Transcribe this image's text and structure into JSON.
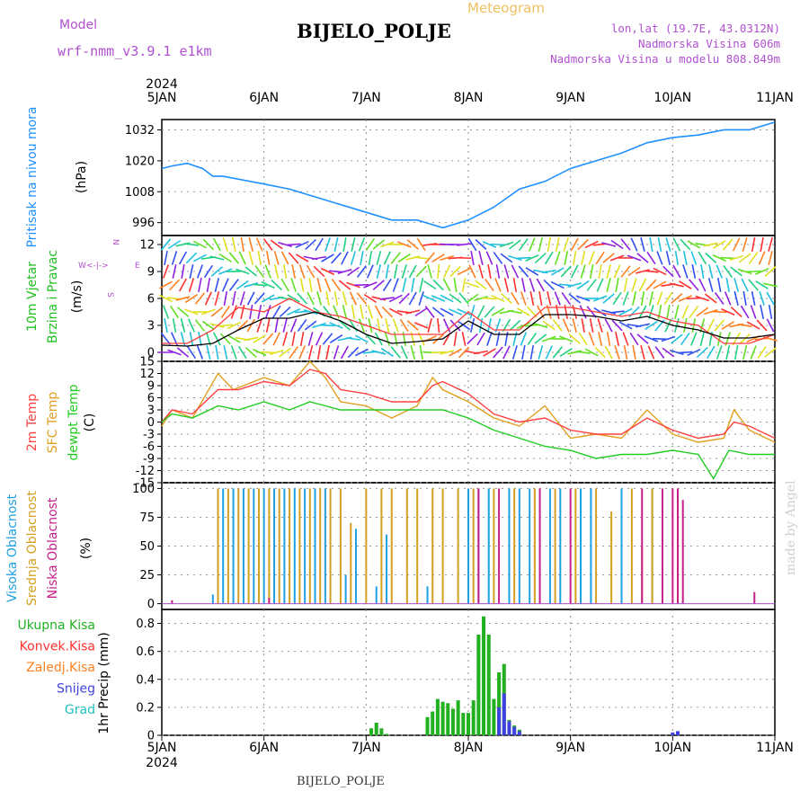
{
  "header": {
    "model_label": "Model",
    "model_name": "wrf-nmm_v3.9.1 e1km",
    "product": "Meteogram",
    "station": "BIJELO_POLJE",
    "coords": "lon,lat (19.7E, 43.0312N)",
    "elevation": "Nadmorska Visina 606m",
    "model_elevation": "Nadmorska Visina u modelu 808.849m",
    "footer_station": "BIJELO_POLJE",
    "credit": "made by Angel"
  },
  "colors": {
    "pressure": "#1e90ff",
    "wind_speed": "#000000",
    "wind_gust": "#ff3a3a",
    "t2m": "#ff4040",
    "tsfc": "#e0a020",
    "dewpt": "#20cc20",
    "high_cloud": "#20a0e0",
    "mid_cloud": "#d4a020",
    "low_cloud": "#c81e8c",
    "total_precip": "#20b020",
    "conv_precip": "#ff3030",
    "frozen_precip": "#ff8020",
    "snow": "#4040e0",
    "graupel": "#20c0c0"
  },
  "chart_data": {
    "type": "line",
    "x_axis": {
      "year": "2024",
      "ticks": [
        "5JAN",
        "6JAN",
        "7JAN",
        "8JAN",
        "9JAN",
        "10JAN",
        "11JAN"
      ]
    },
    "panels": [
      {
        "id": "pressure",
        "ylabel": [
          "Pritisak na nivou mora",
          "(hPa)"
        ],
        "yticks": [
          996,
          1008,
          1020,
          1032
        ],
        "ylim": [
          991,
          1036
        ],
        "series": [
          {
            "name": "Pritisak na nivou mora",
            "x": [
              0,
              0.1,
              0.25,
              0.4,
              0.5,
              0.6,
              1.0,
              1.25,
              1.5,
              1.75,
              2.0,
              2.25,
              2.5,
              2.75,
              3.0,
              3.25,
              3.5,
              3.75,
              4.0,
              4.25,
              4.5,
              4.75,
              5.0,
              5.25,
              5.5,
              5.75,
              6.0
            ],
            "y": [
              1017,
              1018,
              1019,
              1017,
              1014,
              1014,
              1011,
              1009,
              1006,
              1003,
              1000,
              997,
              997,
              994,
              997,
              1002,
              1009,
              1012,
              1017,
              1020,
              1023,
              1027,
              1029,
              1030,
              1032,
              1032,
              1035
            ]
          }
        ]
      },
      {
        "id": "wind",
        "ylabel": [
          "10m Vjetar",
          "Brzina i Pravac",
          "(m/s)"
        ],
        "yticks": [
          0,
          3,
          6,
          9,
          12
        ],
        "ylim": [
          -1,
          13
        ],
        "direction_legend": {
          "n": "N",
          "e": "E",
          "w": "W",
          "s": "S"
        },
        "series": [
          {
            "name": "speed",
            "x": [
              0,
              0.25,
              0.5,
              0.75,
              1.0,
              1.25,
              1.5,
              1.75,
              2.0,
              2.25,
              2.5,
              2.75,
              3.0,
              3.25,
              3.5,
              3.75,
              4.0,
              4.25,
              4.5,
              4.75,
              5.0,
              5.25,
              5.5,
              5.75,
              6.0
            ],
            "y": [
              0.8,
              0.7,
              1.0,
              2.5,
              3.8,
              3.8,
              4.5,
              3.5,
              2.0,
              1.0,
              1.2,
              1.5,
              3.5,
              2.0,
              2.0,
              4.2,
              4.2,
              4.0,
              3.5,
              4.0,
              3.0,
              2.5,
              1.6,
              1.6,
              2.0
            ]
          },
          {
            "name": "gust",
            "x": [
              0,
              0.25,
              0.5,
              0.75,
              1.0,
              1.25,
              1.5,
              1.75,
              2.0,
              2.25,
              2.5,
              2.75,
              3.0,
              3.25,
              3.5,
              3.75,
              4.0,
              4.25,
              4.5,
              4.75,
              5.0,
              5.25,
              5.5,
              5.75,
              6.0
            ],
            "y": [
              1.0,
              1.0,
              2.5,
              5.0,
              4.5,
              6.0,
              4.5,
              4.0,
              3.0,
              2.0,
              2.0,
              2.0,
              4.5,
              2.5,
              2.5,
              5.0,
              5.0,
              4.5,
              4.0,
              4.5,
              3.5,
              3.0,
              1.0,
              1.0,
              2.0
            ]
          }
        ]
      },
      {
        "id": "temperature",
        "ylabel": [
          "2m Temp",
          "SFC Temp",
          "dewpt Temp",
          "(C)"
        ],
        "yticks": [
          -15,
          -12,
          -9,
          -6,
          -3,
          0,
          3,
          6,
          9,
          12,
          15
        ],
        "ylim": [
          -15,
          15
        ],
        "series": [
          {
            "name": "2m Temp",
            "x": [
              0,
              0.1,
              0.3,
              0.55,
              0.75,
              1.0,
              1.25,
              1.45,
              1.6,
              1.75,
              2.0,
              2.25,
              2.5,
              2.65,
              2.75,
              3.0,
              3.25,
              3.5,
              3.75,
              4.0,
              4.25,
              4.5,
              4.75,
              5.0,
              5.25,
              5.5,
              5.6,
              5.75,
              6.0
            ],
            "y": [
              0,
              3,
              2,
              8,
              8,
              10,
              9,
              13,
              12,
              8,
              7,
              5,
              5,
              9,
              10,
              7,
              2,
              0,
              1,
              -2,
              -3,
              -3,
              1,
              -2,
              -4,
              -3,
              0,
              -1,
              -4
            ]
          },
          {
            "name": "SFC Temp",
            "x": [
              0,
              0.1,
              0.3,
              0.55,
              0.7,
              1.0,
              1.25,
              1.45,
              1.6,
              1.75,
              2.0,
              2.25,
              2.5,
              2.65,
              2.75,
              3.0,
              3.25,
              3.5,
              3.75,
              4.0,
              4.25,
              4.5,
              4.75,
              5.0,
              5.25,
              5.5,
              5.6,
              5.75,
              6.0
            ],
            "y": [
              -1,
              3,
              1,
              12,
              8,
              11,
              9,
              15,
              11,
              5,
              4,
              1,
              4,
              11,
              8,
              5,
              1,
              -1,
              4,
              -4,
              -3,
              -4,
              3,
              -3,
              -5,
              -4,
              3,
              -2,
              -5
            ]
          },
          {
            "name": "dewpt Temp",
            "x": [
              0,
              0.1,
              0.3,
              0.55,
              0.75,
              1.0,
              1.25,
              1.45,
              1.6,
              1.75,
              2.0,
              2.25,
              2.5,
              2.75,
              3.0,
              3.25,
              3.5,
              3.75,
              4.0,
              4.25,
              4.5,
              4.75,
              5.0,
              5.25,
              5.4,
              5.55,
              5.75,
              6.0
            ],
            "y": [
              0,
              2,
              1,
              4,
              3,
              5,
              3,
              5,
              4,
              3,
              3,
              3,
              3,
              3,
              1,
              -2,
              -4,
              -6,
              -7,
              -9,
              -8,
              -8,
              -7,
              -8,
              -14,
              -7,
              -8,
              -8
            ]
          }
        ]
      },
      {
        "id": "cloud",
        "ylabel": [
          "Visoka Oblacnost",
          "Srednja Oblacnost",
          "Niska Oblacnost",
          "(%)"
        ],
        "yticks": [
          0,
          25,
          50,
          75,
          100
        ],
        "ylim": [
          -5,
          105
        ],
        "type": "bar",
        "series": [
          {
            "name": "Visoka Oblacnost",
            "x": [
              0.5,
              0.6,
              0.7,
              0.8,
              0.9,
              1.0,
              1.1,
              1.2,
              1.3,
              1.4,
              1.5,
              1.6,
              1.8,
              1.9,
              2.1,
              2.2,
              2.6,
              3.0,
              3.1,
              3.2,
              3.4,
              3.5,
              3.6,
              3.8,
              3.9,
              4.1,
              4.2,
              4.5,
              4.8
            ],
            "y": [
              8,
              100,
              100,
              100,
              100,
              100,
              100,
              100,
              100,
              100,
              100,
              100,
              25,
              65,
              15,
              60,
              15,
              100,
              100,
              100,
              100,
              100,
              100,
              100,
              100,
              100,
              100,
              100,
              100
            ]
          },
          {
            "name": "Srednja Oblacnost",
            "x": [
              0.55,
              0.65,
              0.75,
              0.85,
              0.95,
              1.05,
              1.15,
              1.25,
              1.35,
              1.45,
              1.55,
              1.65,
              1.75,
              1.85,
              2.0,
              2.15,
              2.25,
              2.4,
              2.5,
              2.65,
              2.75,
              2.9,
              3.05,
              3.25,
              3.45,
              3.65,
              3.85,
              4.05,
              4.25,
              4.4,
              4.6,
              4.7,
              4.8
            ],
            "y": [
              100,
              100,
              100,
              100,
              100,
              100,
              100,
              100,
              100,
              100,
              100,
              100,
              100,
              70,
              100,
              100,
              100,
              100,
              100,
              100,
              100,
              100,
              100,
              100,
              100,
              100,
              100,
              100,
              100,
              80,
              100,
              50,
              100
            ]
          },
          {
            "name": "Niska Oblacnost",
            "x": [
              0.1,
              1.05,
              3.1,
              3.3,
              3.7,
              4.0,
              4.7,
              4.9,
              5.0,
              5.05,
              5.1,
              5.8
            ],
            "y": [
              3,
              5,
              100,
              100,
              100,
              100,
              100,
              100,
              100,
              100,
              90,
              10
            ]
          }
        ]
      },
      {
        "id": "precip",
        "ylabel": [
          "1hr Precip (mm)"
        ],
        "legend": [
          "Ukupna Kisa",
          "Konvek.Kisa",
          "Zaledj.Kisa",
          "Snijeg",
          "Grad"
        ],
        "yticks": [
          0,
          0.2,
          0.4,
          0.6,
          0.8
        ],
        "ylim": [
          0,
          0.9
        ],
        "type": "bar",
        "series": [
          {
            "name": "Ukupna Kisa",
            "x": [
              2.05,
              2.1,
              2.15,
              2.2,
              2.6,
              2.65,
              2.7,
              2.75,
              2.8,
              2.85,
              2.9,
              2.95,
              3.0,
              3.05,
              3.1,
              3.15,
              3.2,
              3.25,
              3.3,
              3.35,
              3.4,
              3.45,
              3.5
            ],
            "y": [
              0.05,
              0.09,
              0.05,
              0.01,
              0.13,
              0.17,
              0.26,
              0.24,
              0.23,
              0.19,
              0.25,
              0.16,
              0.16,
              0.25,
              0.72,
              0.85,
              0.72,
              0.26,
              0.45,
              0.51,
              0.11,
              0.07,
              0.04
            ]
          },
          {
            "name": "Snijeg",
            "x": [
              3.3,
              3.35,
              3.4,
              3.45,
              3.5,
              5.0,
              5.05
            ],
            "y": [
              0.2,
              0.3,
              0.1,
              0.06,
              0.03,
              0.02,
              0.03
            ]
          }
        ]
      }
    ]
  }
}
